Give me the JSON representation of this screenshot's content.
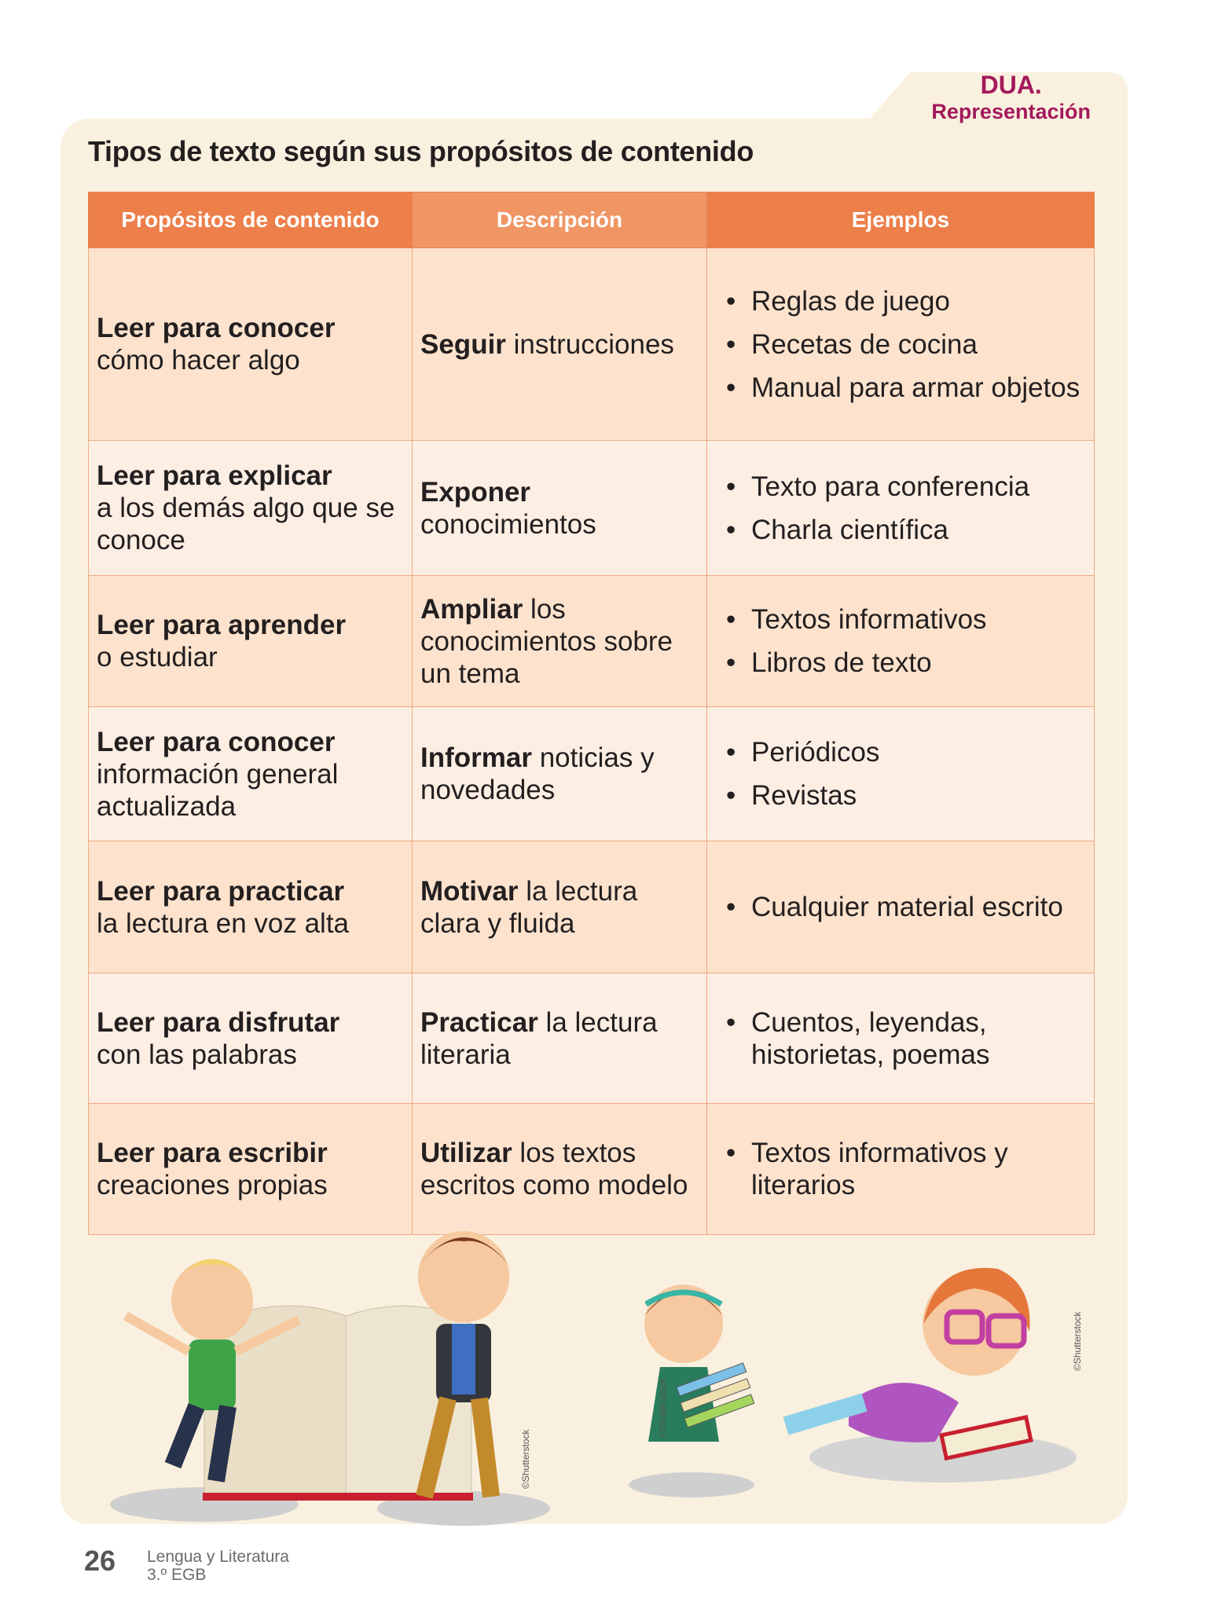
{
  "tab": {
    "line1": "DUA.",
    "line2": "Representación"
  },
  "title": "Tipos de texto según sus propósitos de contenido",
  "table": {
    "headers": [
      "Propósitos de contenido",
      "Descripción",
      "Ejemplos"
    ],
    "rows": [
      {
        "purpose_bold": "Leer para conocer",
        "purpose_rest": "cómo hacer algo",
        "desc_bold": "Seguir",
        "desc_rest": " instrucciones",
        "examples": [
          "Reglas de juego",
          "Recetas de cocina",
          "Manual para armar objetos"
        ]
      },
      {
        "purpose_bold": "Leer para explicar",
        "purpose_rest": "a los demás algo que se conoce",
        "desc_bold": "Exponer",
        "desc_rest": "conocimientos",
        "examples": [
          "Texto para conferencia",
          "Charla científica"
        ]
      },
      {
        "purpose_bold": "Leer para aprender",
        "purpose_rest": "o estudiar",
        "desc_bold": "Ampliar",
        "desc_rest": " los conocimientos sobre un tema",
        "examples": [
          "Textos informativos",
          "Libros de texto"
        ]
      },
      {
        "purpose_bold": "Leer para conocer",
        "purpose_rest": "información general actualizada",
        "desc_bold": "Informar",
        "desc_rest": " noticias y novedades",
        "examples": [
          "Periódicos",
          "Revistas"
        ]
      },
      {
        "purpose_bold": "Leer para practicar",
        "purpose_rest": "la lectura en voz alta",
        "desc_bold": "Motivar",
        "desc_rest": " la lectura clara y fluida",
        "examples": [
          "Cualquier material escrito"
        ]
      },
      {
        "purpose_bold": "Leer para disfrutar",
        "purpose_rest": "con las palabras",
        "desc_bold": "Practicar",
        "desc_rest": " la lectura literaria",
        "examples": [
          "Cuentos, leyendas, historietas, poemas"
        ]
      },
      {
        "purpose_bold": "Leer para escribir",
        "purpose_rest": "creaciones propias",
        "desc_bold": "Utilizar",
        "desc_rest": " los textos escritos como modelo",
        "examples": [
          "Textos informativos y literarios"
        ]
      }
    ]
  },
  "credits": [
    "©Shutterstock",
    "©Shutterstock",
    "©Shutterstock"
  ],
  "footer": {
    "page": "26",
    "subject": "Lengua y Literatura",
    "grade": "3.º EGB"
  },
  "colors": {
    "header": "#ed7f4a",
    "header_mid": "#f09665",
    "row_dark": "#fde3cd",
    "row_light": "#fdeee3",
    "panel": "#faf0df",
    "accent": "#a3195b"
  }
}
